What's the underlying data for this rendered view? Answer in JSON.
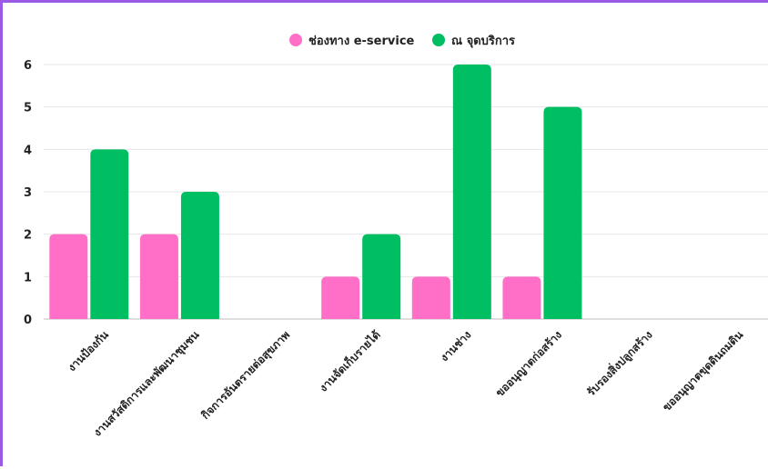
{
  "chart_data": {
    "type": "bar",
    "title": "",
    "xlabel": "",
    "ylabel": "",
    "categories": [
      "งานป้องกัน",
      "งานสวัสดิการและพัฒนาชุมชน",
      "กิจการอันตรายต่อสุขภาพ",
      "งานจัดเก็บรายได้",
      "งานช่าง",
      "ขออนุญาตก่อสร้าง",
      "รับรองสิ่งปลูกสร้าง",
      "ขออนุญาตขุดดินถมดิน"
    ],
    "series": [
      {
        "name": "ช่องทาง e-service",
        "color": "#ff6ec7",
        "values": [
          2,
          2,
          0,
          1,
          1,
          1,
          0,
          0
        ]
      },
      {
        "name": "ณ จุดบริการ",
        "color": "#00bf63",
        "values": [
          4,
          3,
          0,
          2,
          6,
          5,
          0,
          0
        ]
      }
    ],
    "ylim": [
      0,
      6
    ],
    "yticks": [
      0,
      1,
      2,
      3,
      4,
      5,
      6
    ],
    "grid": true,
    "legend_position": "top-center"
  }
}
